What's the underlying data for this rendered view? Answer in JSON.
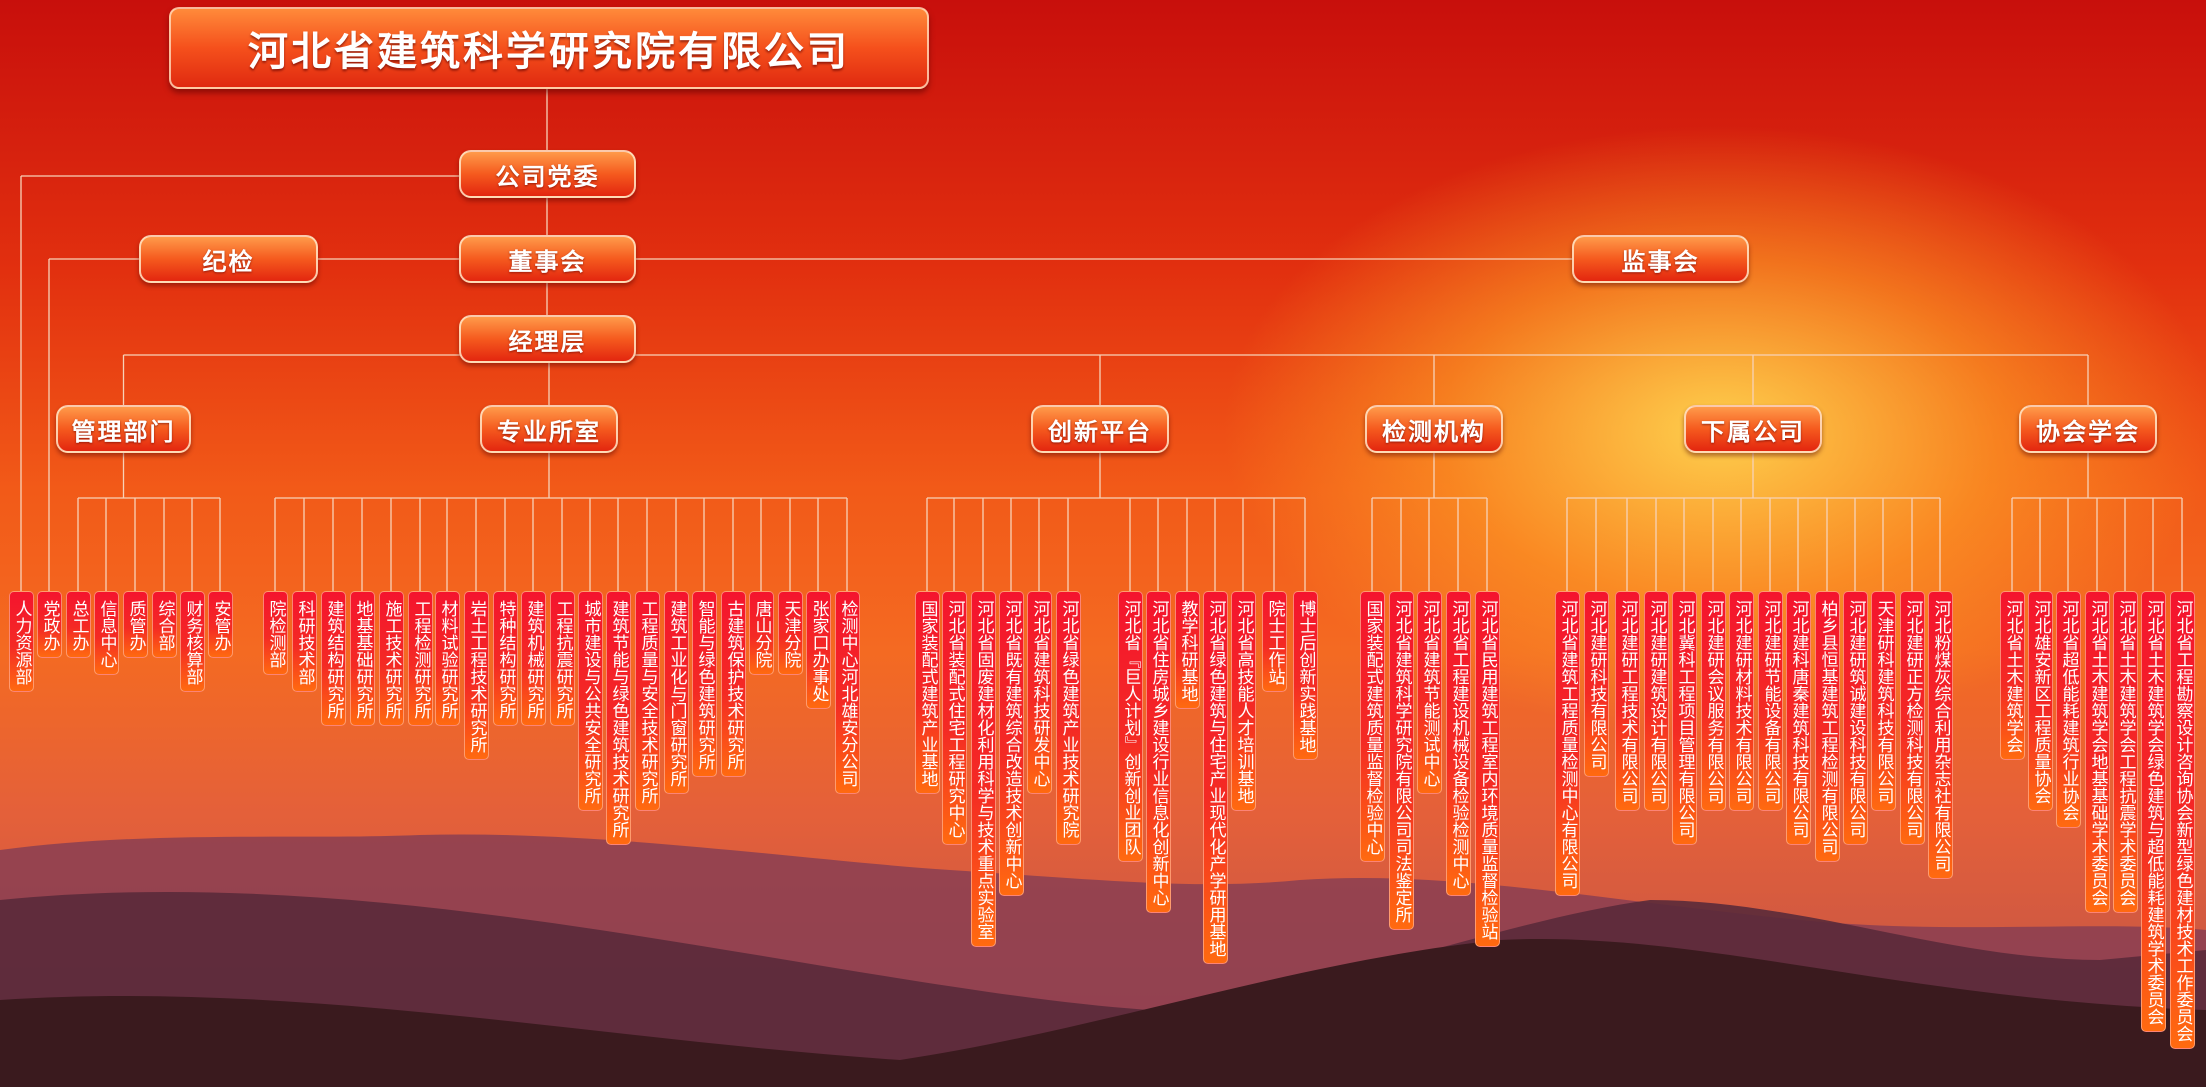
{
  "title": "河北省建筑科学研究院有限公司",
  "top": {
    "party": "公司党委",
    "discipline": "纪检",
    "board": "董事会",
    "supervisors": "监事会",
    "management": "经理层"
  },
  "groups": [
    {
      "label": "管理部门",
      "items": [
        "人力资源部",
        "党政办",
        "总工办",
        "信息中心",
        "质管办",
        "综合部",
        "财务核算部",
        "安管办"
      ]
    },
    {
      "label": "专业所室",
      "items": [
        "院检测部",
        "科研技术部",
        "建筑结构研究所",
        "地基基础研究所",
        "施工技术研究所",
        "工程检测研究所",
        "材料试验研究所",
        "岩土工程技术研究所",
        "特种结构研究所",
        "建筑机械研究所",
        "工程抗震研究所",
        "城市建设与公共安全研究所",
        "建筑节能与绿色建筑技术研究所",
        "工程质量与安全技术研究所",
        "建筑工业化与门窗研究所",
        "智能与绿色建筑研究所",
        "古建筑保护技术研究所",
        "唐山分院",
        "天津分院",
        "张家口办事处",
        "检测中心河北雄安分公司"
      ]
    },
    {
      "label": "创新平台",
      "items": [
        "国家装配式建筑产业基地",
        "河北省装配式住宅工程研究中心",
        "河北省固废建材化利用科学与技术重点实验室",
        "河北省既有建筑综合改造技术创新中心",
        "河北省建筑科技研发中心",
        "河北省绿色建筑产业技术研究院",
        "河北省『巨人计划』创新创业团队",
        "河北省住房城乡建设行业信息化创新中心",
        "教学科研基地",
        "河北省绿色建筑与住宅产业现代化产学研用基地",
        "河北省高技能人才培训基地",
        "院士工作站",
        "博士后创新实践基地"
      ]
    },
    {
      "label": "检测机构",
      "items": [
        "国家装配式建筑质量监督检验中心",
        "河北省建筑科学研究院有限公司司法鉴定所",
        "河北省建筑节能测试中心",
        "河北省工程建设机械设备检验检测中心",
        "河北省民用建筑工程室内环境质量监督检验站"
      ]
    },
    {
      "label": "下属公司",
      "items": [
        "河北省建筑工程质量检测中心有限公司",
        "河北建研科技有限公司",
        "河北建研工程技术有限公司",
        "河北建研建筑设计有限公司",
        "河北冀科工程项目管理有限公司",
        "河北建研会议服务有限公司",
        "河北建研材料技术有限公司",
        "河北建研节能设备有限公司",
        "河北建科唐秦建筑科技有限公司",
        "柏乡县恒基建筑工程检测有限公司",
        "河北建研筑诚建设科技有限公司",
        "天津研科建筑科技有限公司",
        "河北建研正方检测科技有限公司",
        "河北粉煤灰综合利用杂志社有限公司"
      ]
    },
    {
      "label": "协会学会",
      "items": [
        "河北省土木建筑学会",
        "河北雄安新区工程质量协会",
        "河北省超低能耗建筑行业协会",
        "河北省土木建筑学会地基基础学术委员会",
        "河北省土木建筑学会工程抗震学术委员会",
        "河北省土木建筑学会绿色建筑与超低能耗建筑学术委员会",
        "河北省工程勘察设计咨询协会新型绿色建材技术工作委员会"
      ]
    }
  ],
  "colors": {
    "node": "#f55a1e",
    "leaf": "#f4142e",
    "line": "#f7d2b8"
  }
}
